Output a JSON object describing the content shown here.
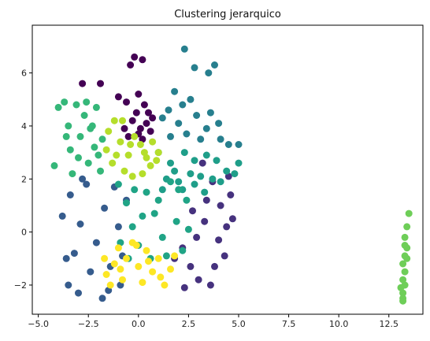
{
  "chart_data": {
    "type": "scatter",
    "title": "Clustering jerarquico",
    "xlabel": "",
    "ylabel": "",
    "xlim": [
      -5.3,
      14.2
    ],
    "ylim": [
      -3.1,
      7.8
    ],
    "xticks": [
      -5.0,
      -2.5,
      0.0,
      2.5,
      5.0,
      7.5,
      10.0,
      12.5
    ],
    "xtick_labels": [
      "−5.0",
      "−2.5",
      "0.0",
      "2.5",
      "5.0",
      "7.5",
      "10.0",
      "12.5"
    ],
    "yticks": [
      -2,
      0,
      2,
      4,
      6
    ],
    "ytick_labels": [
      "−2",
      "0",
      "2",
      "4",
      "6"
    ],
    "grid": false,
    "legend": "none",
    "clusters": [
      {
        "id": 0,
        "color": "#440154",
        "points": [
          [
            -2.8,
            5.6
          ],
          [
            -1.9,
            5.6
          ],
          [
            -1.0,
            5.1
          ],
          [
            -0.4,
            6.3
          ],
          [
            -0.2,
            6.6
          ],
          [
            0.2,
            6.5
          ],
          [
            -0.6,
            4.9
          ],
          [
            0.0,
            5.2
          ],
          [
            0.3,
            4.8
          ],
          [
            0.5,
            4.5
          ],
          [
            -0.3,
            4.2
          ],
          [
            0.1,
            3.9
          ],
          [
            -0.5,
            3.6
          ],
          [
            0.6,
            3.8
          ],
          [
            0.2,
            3.5
          ],
          [
            -0.1,
            4.5
          ],
          [
            0.4,
            4.1
          ],
          [
            -0.7,
            3.9
          ],
          [
            0.7,
            4.3
          ],
          [
            0.0,
            3.7
          ]
        ]
      },
      {
        "id": 1,
        "color": "#46327e",
        "points": [
          [
            1.8,
            -1.0
          ],
          [
            2.2,
            -0.6
          ],
          [
            2.6,
            -1.3
          ],
          [
            2.9,
            -0.2
          ],
          [
            3.3,
            0.4
          ],
          [
            3.0,
            -1.8
          ],
          [
            3.6,
            -2.0
          ],
          [
            3.4,
            1.2
          ],
          [
            3.7,
            1.9
          ],
          [
            4.1,
            1.0
          ],
          [
            4.4,
            0.2
          ],
          [
            4.3,
            -0.9
          ],
          [
            4.6,
            1.4
          ],
          [
            4.5,
            2.1
          ],
          [
            3.8,
            -1.3
          ],
          [
            4.0,
            -0.3
          ],
          [
            2.3,
            -2.1
          ],
          [
            2.7,
            0.8
          ],
          [
            3.2,
            2.6
          ],
          [
            4.7,
            0.5
          ]
        ]
      },
      {
        "id": 2,
        "color": "#365c8d",
        "points": [
          [
            -3.8,
            0.6
          ],
          [
            -3.6,
            -1.0
          ],
          [
            -3.5,
            -2.0
          ],
          [
            -3.4,
            1.4
          ],
          [
            -3.0,
            -2.3
          ],
          [
            -2.9,
            0.3
          ],
          [
            -2.6,
            1.8
          ],
          [
            -2.4,
            -1.5
          ],
          [
            -2.1,
            -0.4
          ],
          [
            -1.8,
            -2.5
          ],
          [
            -1.7,
            0.9
          ],
          [
            -1.4,
            -1.3
          ],
          [
            -1.2,
            1.7
          ],
          [
            -1.0,
            0.2
          ],
          [
            -0.8,
            -0.9
          ],
          [
            -0.6,
            1.2
          ],
          [
            -3.2,
            -0.8
          ],
          [
            -2.8,
            2.0
          ],
          [
            -1.5,
            -2.2
          ],
          [
            -0.9,
            -2.0
          ]
        ]
      },
      {
        "id": 3,
        "color": "#277f8e",
        "points": [
          [
            1.8,
            5.3
          ],
          [
            2.3,
            6.9
          ],
          [
            2.8,
            6.2
          ],
          [
            3.5,
            6.0
          ],
          [
            3.8,
            6.3
          ],
          [
            2.6,
            5.0
          ],
          [
            1.5,
            4.6
          ],
          [
            2.0,
            4.1
          ],
          [
            2.9,
            4.4
          ],
          [
            3.4,
            3.9
          ],
          [
            4.1,
            3.5
          ],
          [
            4.5,
            3.3
          ],
          [
            5.0,
            3.3
          ],
          [
            1.6,
            3.6
          ],
          [
            2.4,
            3.7
          ],
          [
            3.1,
            3.5
          ],
          [
            4.0,
            4.1
          ],
          [
            3.6,
            4.5
          ],
          [
            1.2,
            4.3
          ],
          [
            2.2,
            4.8
          ]
        ]
      },
      {
        "id": 4,
        "color": "#1f9e89",
        "points": [
          [
            1.0,
            3.0
          ],
          [
            1.6,
            2.6
          ],
          [
            2.3,
            3.0
          ],
          [
            2.8,
            2.7
          ],
          [
            3.4,
            2.9
          ],
          [
            3.9,
            2.7
          ],
          [
            4.4,
            2.3
          ],
          [
            4.8,
            2.2
          ],
          [
            5.0,
            2.6
          ],
          [
            1.4,
            2.0
          ],
          [
            2.0,
            1.9
          ],
          [
            2.6,
            2.2
          ],
          [
            3.1,
            2.1
          ],
          [
            3.7,
            2.0
          ],
          [
            2.2,
            1.6
          ],
          [
            1.2,
            1.6
          ],
          [
            3.3,
            1.5
          ],
          [
            4.1,
            1.9
          ],
          [
            2.8,
            1.8
          ],
          [
            1.8,
            2.3
          ]
        ]
      },
      {
        "id": 5,
        "color": "#20a486",
        "points": [
          [
            -1.0,
            1.8
          ],
          [
            -0.6,
            1.1
          ],
          [
            -0.3,
            0.2
          ],
          [
            0.0,
            -0.5
          ],
          [
            0.4,
            1.5
          ],
          [
            0.8,
            0.7
          ],
          [
            1.2,
            -0.2
          ],
          [
            1.6,
            1.9
          ],
          [
            1.9,
            0.4
          ],
          [
            2.2,
            -0.7
          ],
          [
            2.4,
            1.2
          ],
          [
            -0.9,
            -0.4
          ],
          [
            -0.5,
            -1.0
          ],
          [
            0.6,
            -1.0
          ],
          [
            1.4,
            -0.9
          ],
          [
            2.0,
            1.6
          ],
          [
            0.2,
            0.6
          ],
          [
            -0.2,
            1.6
          ],
          [
            1.0,
            1.2
          ],
          [
            2.5,
            0.1
          ]
        ]
      },
      {
        "id": 6,
        "color": "#35b779",
        "points": [
          [
            -4.2,
            2.5
          ],
          [
            -4.0,
            4.7
          ],
          [
            -3.7,
            4.9
          ],
          [
            -3.5,
            4.0
          ],
          [
            -3.4,
            3.1
          ],
          [
            -3.3,
            2.2
          ],
          [
            -3.1,
            4.8
          ],
          [
            -2.9,
            3.6
          ],
          [
            -2.7,
            4.4
          ],
          [
            -2.5,
            2.6
          ],
          [
            -2.3,
            4.0
          ],
          [
            -2.2,
            3.2
          ],
          [
            -2.1,
            4.7
          ],
          [
            -1.9,
            2.3
          ],
          [
            -1.8,
            3.5
          ],
          [
            -3.0,
            2.8
          ],
          [
            -2.6,
            4.9
          ],
          [
            -3.6,
            3.6
          ],
          [
            -2.0,
            2.9
          ],
          [
            -2.4,
            3.9
          ]
        ]
      },
      {
        "id": 7,
        "color": "#6ece58",
        "points": [
          [
            13.5,
            0.7
          ],
          [
            13.4,
            0.2
          ],
          [
            13.3,
            -0.2
          ],
          [
            13.4,
            -0.6
          ],
          [
            13.3,
            -0.9
          ],
          [
            13.2,
            -1.2
          ],
          [
            13.3,
            -1.5
          ],
          [
            13.2,
            -1.8
          ],
          [
            13.1,
            -2.1
          ],
          [
            13.2,
            -2.3
          ],
          [
            13.2,
            -2.5
          ],
          [
            13.2,
            -2.6
          ],
          [
            13.3,
            -2.0
          ],
          [
            13.4,
            -1.0
          ],
          [
            13.3,
            -0.5
          ]
        ]
      },
      {
        "id": 8,
        "color": "#b5de2b",
        "points": [
          [
            -1.5,
            3.8
          ],
          [
            -1.2,
            4.2
          ],
          [
            -0.8,
            4.2
          ],
          [
            -1.6,
            3.1
          ],
          [
            -1.3,
            2.6
          ],
          [
            -0.9,
            3.4
          ],
          [
            -0.5,
            2.9
          ],
          [
            -0.2,
            3.6
          ],
          [
            0.1,
            3.3
          ],
          [
            0.4,
            2.8
          ],
          [
            0.7,
            3.4
          ],
          [
            1.0,
            3.0
          ],
          [
            -0.7,
            2.3
          ],
          [
            -0.3,
            2.1
          ],
          [
            0.2,
            2.2
          ],
          [
            0.6,
            2.5
          ],
          [
            -1.1,
            2.9
          ],
          [
            0.9,
            2.7
          ],
          [
            -0.4,
            3.3
          ],
          [
            0.3,
            3.0
          ]
        ]
      },
      {
        "id": 9,
        "color": "#fde725",
        "points": [
          [
            -1.7,
            -1.0
          ],
          [
            -1.6,
            -1.6
          ],
          [
            -1.4,
            -2.0
          ],
          [
            -1.2,
            -1.2
          ],
          [
            -1.0,
            -0.6
          ],
          [
            -0.8,
            -1.8
          ],
          [
            -0.6,
            -1.0
          ],
          [
            -0.3,
            -0.4
          ],
          [
            0.0,
            -1.3
          ],
          [
            0.2,
            -1.9
          ],
          [
            0.4,
            -0.7
          ],
          [
            0.7,
            -1.5
          ],
          [
            1.0,
            -1.0
          ],
          [
            1.3,
            -2.0
          ],
          [
            1.6,
            -1.4
          ],
          [
            1.8,
            -0.9
          ],
          [
            -0.1,
            -0.5
          ],
          [
            0.5,
            -1.1
          ],
          [
            1.1,
            -1.7
          ],
          [
            -0.9,
            -1.4
          ]
        ]
      }
    ]
  }
}
